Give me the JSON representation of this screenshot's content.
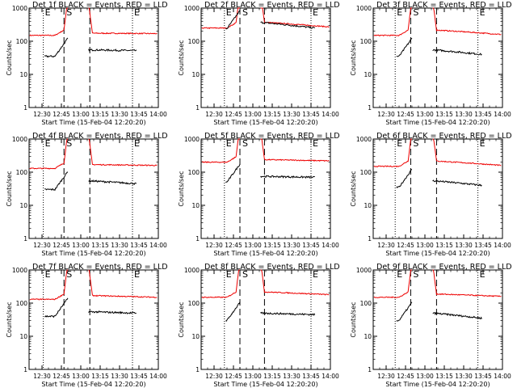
{
  "panels": [
    {
      "title": "Det 1f BLACK = Events, RED = LLD",
      "red_base": [
        150,
        175,
        170
      ],
      "black_base": [
        35,
        55,
        52
      ],
      "dotted": [
        "12:31",
        "13:40"
      ],
      "s_dash": [
        "12:47",
        "13:07"
      ]
    },
    {
      "title": "Det 2f BLACK = Events, RED = LLD",
      "red_base": [
        250,
        380,
        270
      ],
      "black_base": [
        240,
        370,
        250
      ],
      "dotted": [
        "12:38",
        "13:45"
      ],
      "s_dash": [
        "12:50",
        "13:09"
      ]
    },
    {
      "title": "Det 3f BLACK = Events, RED = LLD",
      "red_base": [
        150,
        220,
        160
      ],
      "black_base": [
        35,
        55,
        40
      ],
      "dotted": [
        "12:37",
        "13:41"
      ],
      "s_dash": [
        "12:49",
        "13:09"
      ]
    },
    {
      "title": "Det 4f BLACK = Events, RED = LLD",
      "red_base": [
        130,
        170,
        160
      ],
      "black_base": [
        30,
        55,
        45
      ],
      "dotted": [
        "12:31",
        "13:40"
      ],
      "s_dash": [
        "12:47",
        "13:07"
      ]
    },
    {
      "title": "Det 5f BLACK = Events, RED = LLD",
      "red_base": [
        200,
        240,
        220
      ],
      "black_base": [
        50,
        75,
        70
      ],
      "dotted": [
        "12:38",
        "13:45"
      ],
      "s_dash": [
        "12:50",
        "13:09"
      ]
    },
    {
      "title": "Det 6f BLACK = Events, RED = LLD",
      "red_base": [
        150,
        220,
        160
      ],
      "black_base": [
        35,
        55,
        40
      ],
      "dotted": [
        "12:37",
        "13:41"
      ],
      "s_dash": [
        "12:49",
        "13:09"
      ]
    },
    {
      "title": "Det 7f BLACK = Events, RED = LLD",
      "red_base": [
        130,
        170,
        150
      ],
      "black_base": [
        40,
        55,
        50
      ],
      "dotted": [
        "12:31",
        "13:40"
      ],
      "s_dash": [
        "12:47",
        "13:07"
      ]
    },
    {
      "title": "Det 8f BLACK = Events, RED = LLD",
      "red_base": [
        150,
        220,
        180
      ],
      "black_base": [
        30,
        50,
        45
      ],
      "dotted": [
        "12:38",
        "13:45"
      ],
      "s_dash": [
        "12:50",
        "13:09"
      ]
    },
    {
      "title": "Det 9f BLACK = Events, RED = LLD",
      "red_base": [
        150,
        190,
        160
      ],
      "black_base": [
        30,
        50,
        35
      ],
      "dotted": [
        "12:37",
        "13:41"
      ],
      "s_dash": [
        "12:49",
        "13:09"
      ]
    }
  ],
  "shared": {
    "xlabel": "Start Time (15-Feb-04 12:20:20)",
    "ylabel": "Counts/sec",
    "x_ticks": [
      "12:30",
      "12:45",
      "13:00",
      "13:15",
      "13:30",
      "13:45",
      "14:00"
    ],
    "y_ticks": [
      "1",
      "10",
      "100",
      "1000"
    ],
    "mark_e": "E",
    "mark_s": "S",
    "series_colors": {
      "events": "#000000",
      "lld": "#ee0000"
    }
  },
  "chart_data": {
    "type": "line",
    "layout": "3x3 grid",
    "x_axis": {
      "label": "Start Time (15-Feb-04 12:20:20)",
      "range": [
        "12:20",
        "14:00"
      ],
      "ticks": [
        "12:30",
        "12:45",
        "13:00",
        "13:15",
        "13:30",
        "13:45",
        "14:00"
      ]
    },
    "y_axis": {
      "label": "Counts/sec",
      "scale": "log",
      "range": [
        1,
        1000
      ],
      "ticks": [
        1,
        10,
        100,
        1000
      ]
    },
    "series": [
      "BLACK = Events",
      "RED = LLD"
    ],
    "gap_interval": [
      "12:50",
      "13:06"
    ]
  }
}
